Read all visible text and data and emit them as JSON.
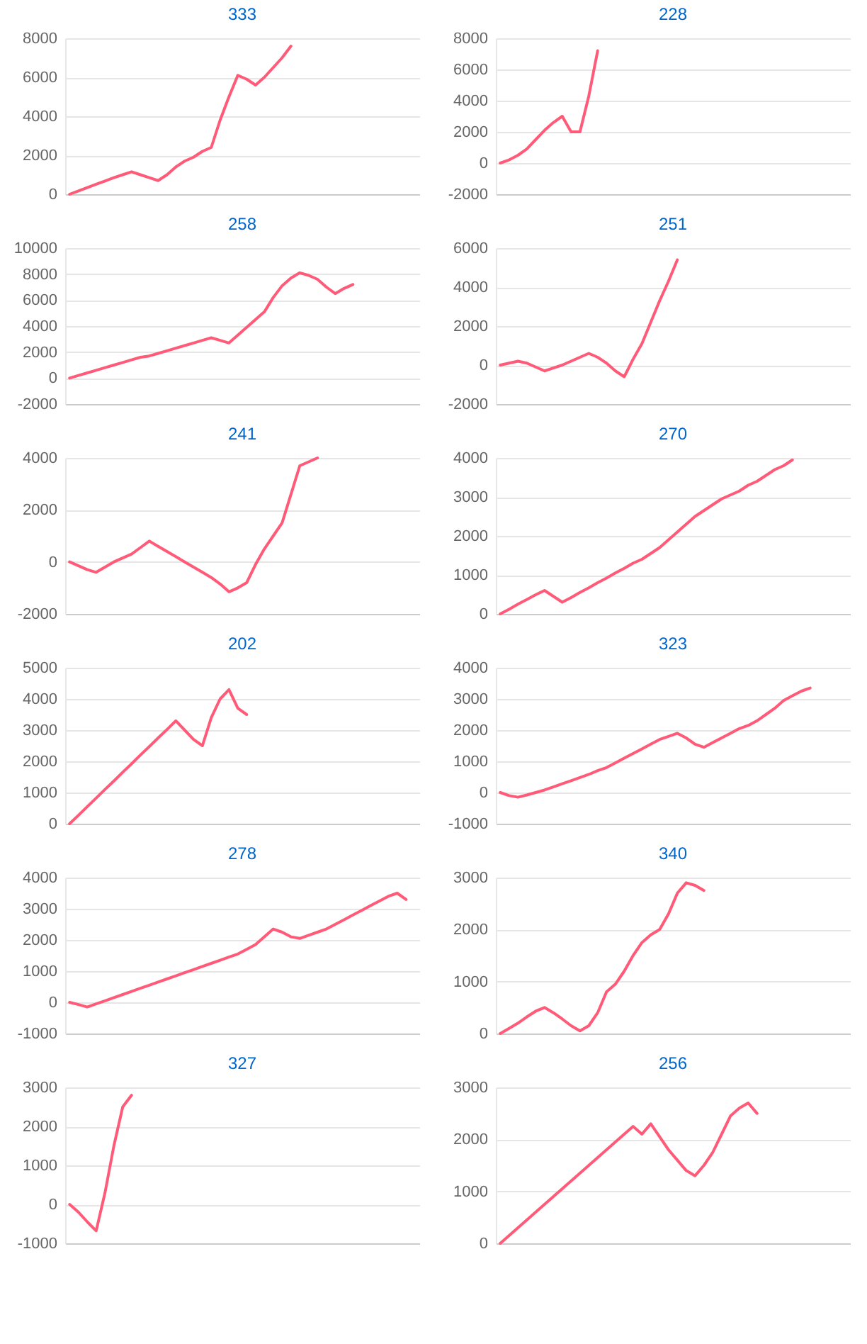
{
  "chart_data": [
    {
      "type": "line",
      "title": "333",
      "categories": [
        null,
        null,
        null,
        null,
        null,
        null,
        null,
        null,
        null,
        null,
        null,
        null,
        null,
        null,
        null,
        null,
        null,
        null,
        null,
        null,
        null,
        null,
        null,
        null,
        null,
        null,
        null,
        null,
        null,
        null,
        null,
        null,
        null,
        null,
        null,
        null,
        null,
        null,
        null,
        null
      ],
      "color": "#ff5a78",
      "ylim": [
        0,
        8000
      ],
      "yticks": [
        0,
        2000,
        4000,
        6000,
        8000
      ],
      "grid": "y",
      "tick_labels": "y",
      "values": [
        0,
        170,
        340,
        510,
        680,
        850,
        1000,
        1150,
        1000,
        850,
        700,
        1000,
        1400,
        1700,
        1900,
        2200,
        2400,
        3800,
        5000,
        6100,
        5900,
        5600,
        6000,
        6500,
        7000,
        7600,
        null,
        null,
        null,
        null,
        null,
        null,
        null,
        null,
        null,
        null,
        null,
        null,
        null,
        null
      ]
    },
    {
      "type": "line",
      "title": "228",
      "categories": [
        null,
        null,
        null,
        null,
        null,
        null,
        null,
        null,
        null,
        null,
        null,
        null,
        null,
        null,
        null,
        null,
        null,
        null,
        null,
        null,
        null,
        null,
        null,
        null,
        null,
        null,
        null,
        null,
        null,
        null,
        null,
        null,
        null,
        null,
        null,
        null,
        null,
        null,
        null,
        null
      ],
      "color": "#ff5a78",
      "ylim": [
        -2000,
        8000
      ],
      "yticks": [
        -2000,
        0,
        2000,
        4000,
        6000,
        8000
      ],
      "grid": "y",
      "tick_labels": "y",
      "values": [
        0,
        200,
        500,
        900,
        1500,
        2100,
        2600,
        3000,
        2000,
        2000,
        4300,
        7200,
        null,
        null,
        null,
        null,
        null,
        null,
        null,
        null,
        null,
        null,
        null,
        null,
        null,
        null,
        null,
        null,
        null,
        null,
        null,
        null,
        null,
        null,
        null,
        null,
        null,
        null,
        null,
        null
      ]
    },
    {
      "type": "line",
      "title": "258",
      "categories": [
        null,
        null,
        null,
        null,
        null,
        null,
        null,
        null,
        null,
        null,
        null,
        null,
        null,
        null,
        null,
        null,
        null,
        null,
        null,
        null,
        null,
        null,
        null,
        null,
        null,
        null,
        null,
        null,
        null,
        null,
        null,
        null,
        null,
        null,
        null,
        null,
        null,
        null,
        null,
        null
      ],
      "color": "#ff5a78",
      "ylim": [
        -2000,
        10000
      ],
      "yticks": [
        -2000,
        0,
        2000,
        4000,
        6000,
        8000,
        10000
      ],
      "grid": "y",
      "tick_labels": "y",
      "values": [
        0,
        200,
        400,
        600,
        800,
        1000,
        1200,
        1400,
        1600,
        1700,
        1900,
        2100,
        2300,
        2500,
        2700,
        2900,
        3100,
        2900,
        2700,
        3300,
        3900,
        4500,
        5100,
        6200,
        7100,
        7700,
        8100,
        7900,
        7600,
        7000,
        6500,
        6900,
        7200,
        null,
        null,
        null,
        null,
        null,
        null,
        null
      ]
    },
    {
      "type": "line",
      "title": "251",
      "categories": [
        null,
        null,
        null,
        null,
        null,
        null,
        null,
        null,
        null,
        null,
        null,
        null,
        null,
        null,
        null,
        null,
        null,
        null,
        null,
        null,
        null,
        null,
        null,
        null,
        null,
        null,
        null,
        null,
        null,
        null,
        null,
        null,
        null,
        null,
        null,
        null,
        null,
        null,
        null,
        null
      ],
      "color": "#ff5a78",
      "ylim": [
        -2000,
        6000
      ],
      "yticks": [
        -2000,
        0,
        2000,
        4000,
        6000
      ],
      "grid": "y",
      "tick_labels": "y",
      "values": [
        0,
        100,
        200,
        100,
        -100,
        -300,
        -150,
        0,
        200,
        400,
        600,
        400,
        100,
        -300,
        -600,
        300,
        1100,
        2200,
        3300,
        4300,
        5400,
        null,
        null,
        null,
        null,
        null,
        null,
        null,
        null,
        null,
        null,
        null,
        null,
        null,
        null,
        null,
        null,
        null,
        null,
        null
      ]
    },
    {
      "type": "line",
      "title": "241",
      "categories": [
        null,
        null,
        null,
        null,
        null,
        null,
        null,
        null,
        null,
        null,
        null,
        null,
        null,
        null,
        null,
        null,
        null,
        null,
        null,
        null,
        null,
        null,
        null,
        null,
        null,
        null,
        null,
        null,
        null,
        null,
        null,
        null,
        null,
        null,
        null,
        null,
        null,
        null,
        null,
        null
      ],
      "color": "#ff5a78",
      "ylim": [
        -2000,
        4000
      ],
      "yticks": [
        -2000,
        0,
        2000,
        4000
      ],
      "grid": "y",
      "tick_labels": "y",
      "values": [
        0,
        -150,
        -300,
        -400,
        -200,
        0,
        150,
        300,
        550,
        800,
        600,
        400,
        200,
        0,
        -200,
        -400,
        -600,
        -850,
        -1150,
        -1000,
        -800,
        -100,
        500,
        1000,
        1500,
        2600,
        3700,
        3850,
        4000,
        null,
        null,
        null,
        null,
        null,
        null,
        null,
        null,
        null,
        null,
        null
      ]
    },
    {
      "type": "line",
      "title": "270",
      "categories": [
        null,
        null,
        null,
        null,
        null,
        null,
        null,
        null,
        null,
        null,
        null,
        null,
        null,
        null,
        null,
        null,
        null,
        null,
        null,
        null,
        null,
        null,
        null,
        null,
        null,
        null,
        null,
        null,
        null,
        null,
        null,
        null,
        null,
        null,
        null,
        null,
        null,
        null,
        null,
        null
      ],
      "color": "#ff5a78",
      "ylim": [
        0,
        4000
      ],
      "yticks": [
        0,
        1000,
        2000,
        3000,
        4000
      ],
      "grid": "y",
      "tick_labels": "y",
      "values": [
        0,
        120,
        250,
        370,
        490,
        600,
        450,
        300,
        420,
        550,
        670,
        800,
        920,
        1050,
        1170,
        1300,
        1400,
        1550,
        1700,
        1900,
        2100,
        2300,
        2500,
        2650,
        2800,
        2950,
        3050,
        3150,
        3300,
        3400,
        3550,
        3700,
        3800,
        3950,
        null,
        null,
        null,
        null,
        null,
        null
      ]
    },
    {
      "type": "line",
      "title": "202",
      "categories": [
        null,
        null,
        null,
        null,
        null,
        null,
        null,
        null,
        null,
        null,
        null,
        null,
        null,
        null,
        null,
        null,
        null,
        null,
        null,
        null,
        null,
        null,
        null,
        null,
        null,
        null,
        null,
        null,
        null,
        null,
        null,
        null,
        null,
        null,
        null,
        null,
        null,
        null,
        null,
        null
      ],
      "color": "#ff5a78",
      "ylim": [
        0,
        5000
      ],
      "yticks": [
        0,
        1000,
        2000,
        3000,
        4000,
        5000
      ],
      "grid": "y",
      "tick_labels": "y",
      "values": [
        0,
        270,
        550,
        820,
        1100,
        1370,
        1650,
        1920,
        2200,
        2470,
        2750,
        3020,
        3300,
        3000,
        2700,
        2500,
        3400,
        4000,
        4300,
        3700,
        3500,
        null,
        null,
        null,
        null,
        null,
        null,
        null,
        null,
        null,
        null,
        null,
        null,
        null,
        null,
        null,
        null,
        null,
        null,
        null
      ]
    },
    {
      "type": "line",
      "title": "323",
      "categories": [
        null,
        null,
        null,
        null,
        null,
        null,
        null,
        null,
        null,
        null,
        null,
        null,
        null,
        null,
        null,
        null,
        null,
        null,
        null,
        null,
        null,
        null,
        null,
        null,
        null,
        null,
        null,
        null,
        null,
        null,
        null,
        null,
        null,
        null,
        null,
        null,
        null,
        null,
        null,
        null
      ],
      "color": "#ff5a78",
      "ylim": [
        -1000,
        4000
      ],
      "yticks": [
        -1000,
        0,
        1000,
        2000,
        3000,
        4000
      ],
      "grid": "y",
      "tick_labels": "y",
      "values": [
        0,
        -100,
        -150,
        -80,
        0,
        80,
        180,
        280,
        380,
        480,
        580,
        700,
        800,
        950,
        1100,
        1250,
        1400,
        1550,
        1700,
        1800,
        1900,
        1750,
        1550,
        1450,
        1600,
        1750,
        1900,
        2050,
        2150,
        2300,
        2500,
        2700,
        2950,
        3100,
        3250,
        3350,
        null,
        null,
        null,
        null
      ]
    },
    {
      "type": "line",
      "title": "278",
      "categories": [
        null,
        null,
        null,
        null,
        null,
        null,
        null,
        null,
        null,
        null,
        null,
        null,
        null,
        null,
        null,
        null,
        null,
        null,
        null,
        null,
        null,
        null,
        null,
        null,
        null,
        null,
        null,
        null,
        null,
        null,
        null,
        null,
        null,
        null,
        null,
        null,
        null,
        null,
        null,
        null
      ],
      "color": "#ff5a78",
      "ylim": [
        -1000,
        4000
      ],
      "yticks": [
        -1000,
        0,
        1000,
        2000,
        3000,
        4000
      ],
      "grid": "y",
      "tick_labels": "y",
      "values": [
        0,
        -70,
        -150,
        -50,
        50,
        150,
        250,
        350,
        450,
        550,
        650,
        750,
        850,
        950,
        1050,
        1150,
        1250,
        1350,
        1450,
        1550,
        1700,
        1850,
        2100,
        2350,
        2250,
        2100,
        2050,
        2150,
        2250,
        2350,
        2500,
        2650,
        2800,
        2950,
        3100,
        3250,
        3400,
        3500,
        3300,
        null
      ]
    },
    {
      "type": "line",
      "title": "340",
      "categories": [
        null,
        null,
        null,
        null,
        null,
        null,
        null,
        null,
        null,
        null,
        null,
        null,
        null,
        null,
        null,
        null,
        null,
        null,
        null,
        null,
        null,
        null,
        null,
        null,
        null,
        null,
        null,
        null,
        null,
        null,
        null,
        null,
        null,
        null,
        null,
        null,
        null,
        null,
        null,
        null
      ],
      "color": "#ff5a78",
      "ylim": [
        0,
        3000
      ],
      "yticks": [
        0,
        1000,
        2000,
        3000
      ],
      "grid": "y",
      "tick_labels": "y",
      "values": [
        0,
        100,
        200,
        320,
        430,
        500,
        400,
        280,
        150,
        50,
        150,
        400,
        800,
        950,
        1200,
        1500,
        1750,
        1900,
        2000,
        2300,
        2700,
        2900,
        2850,
        2750,
        null,
        null,
        null,
        null,
        null,
        null,
        null,
        null,
        null,
        null,
        null,
        null,
        null,
        null,
        null,
        null
      ]
    },
    {
      "type": "line",
      "title": "327",
      "categories": [
        null,
        null,
        null,
        null,
        null,
        null,
        null,
        null,
        null,
        null,
        null,
        null,
        null,
        null,
        null,
        null,
        null,
        null,
        null,
        null,
        null,
        null,
        null,
        null,
        null,
        null,
        null,
        null,
        null,
        null,
        null,
        null,
        null,
        null,
        null,
        null,
        null,
        null,
        null,
        null
      ],
      "color": "#ff5a78",
      "ylim": [
        -1000,
        3000
      ],
      "yticks": [
        -1000,
        0,
        1000,
        2000,
        3000
      ],
      "grid": "y",
      "tick_labels": "y",
      "values": [
        0,
        -200,
        -450,
        -680,
        300,
        1500,
        2500,
        2800,
        null,
        null,
        null,
        null,
        null,
        null,
        null,
        null,
        null,
        null,
        null,
        null,
        null,
        null,
        null,
        null,
        null,
        null,
        null,
        null,
        null,
        null,
        null,
        null,
        null,
        null,
        null,
        null,
        null,
        null,
        null,
        null
      ]
    },
    {
      "type": "line",
      "title": "256",
      "categories": [
        null,
        null,
        null,
        null,
        null,
        null,
        null,
        null,
        null,
        null,
        null,
        null,
        null,
        null,
        null,
        null,
        null,
        null,
        null,
        null,
        null,
        null,
        null,
        null,
        null,
        null,
        null,
        null,
        null,
        null,
        null,
        null,
        null,
        null,
        null,
        null,
        null,
        null,
        null,
        null
      ],
      "color": "#ff5a78",
      "ylim": [
        0,
        3000
      ],
      "yticks": [
        0,
        1000,
        2000,
        3000
      ],
      "grid": "y",
      "tick_labels": "y",
      "values": [
        0,
        150,
        300,
        450,
        600,
        750,
        900,
        1050,
        1200,
        1350,
        1500,
        1650,
        1800,
        1950,
        2100,
        2250,
        2100,
        2300,
        2050,
        1800,
        1600,
        1400,
        1300,
        1500,
        1750,
        2100,
        2450,
        2600,
        2700,
        2500,
        null,
        null,
        null,
        null,
        null,
        null,
        null,
        null,
        null,
        null
      ]
    }
  ]
}
